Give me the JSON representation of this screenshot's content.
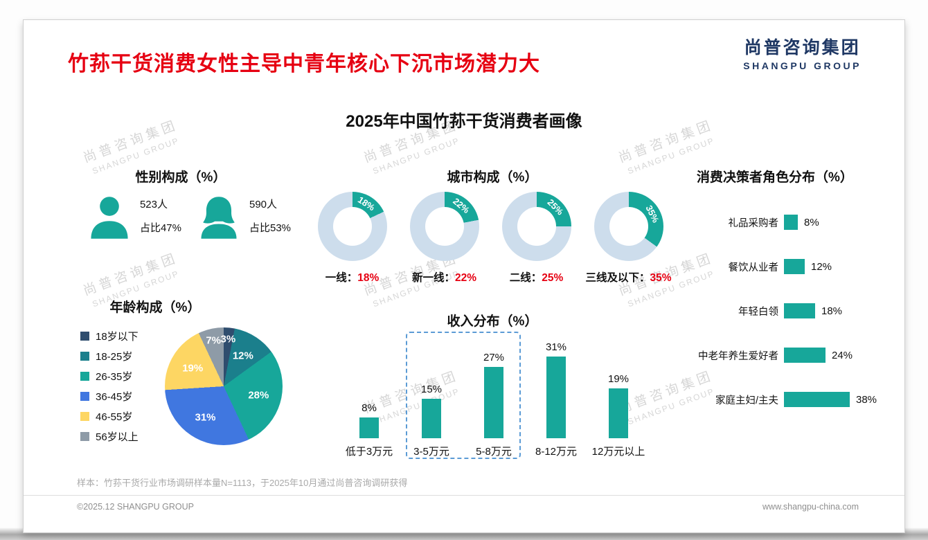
{
  "page": {
    "headline": "竹荪干货消费女性主导中青年核心下沉市场潜力大",
    "chart_title": "2025年中国竹荪干货消费者画像",
    "note": "样本：竹荪干货行业市场调研样本量N=1113，于2025年10月通过尚普咨询调研获得",
    "footer_left": "©2025.12 SHANGPU GROUP",
    "footer_right": "www.shangpu-china.com"
  },
  "logo": {
    "cn": "尚普咨询集团",
    "en": "SHANGPU GROUP"
  },
  "watermark": {
    "cn": "尚普咨询集团",
    "en": "SHANGPU GROUP"
  },
  "colors": {
    "teal": "#17a79a",
    "donut_rest": "#cdddec",
    "headline_red": "#e60012",
    "logo_navy": "#1f3864",
    "dashed_box_blue": "#5b9bd5",
    "watermark_gray": "#d6d6d6"
  },
  "chart_data": [
    {
      "id": "gender",
      "type": "pictogram",
      "title": "性别构成（%）",
      "items": [
        {
          "gender": "男",
          "count": "523人",
          "share": "占比47%",
          "share_value": 47
        },
        {
          "gender": "女",
          "count": "590人",
          "share": "占比53%",
          "share_value": 53
        }
      ]
    },
    {
      "id": "city",
      "type": "donut",
      "title": "城市构成（%）",
      "items": [
        {
          "label": "一线：",
          "pct_label": "18%",
          "value": 18
        },
        {
          "label": "新一线：",
          "pct_label": "22%",
          "value": 22
        },
        {
          "label": "二线：",
          "pct_label": "25%",
          "value": 25
        },
        {
          "label": "三线及以下：",
          "pct_label": "35%",
          "value": 35
        }
      ]
    },
    {
      "id": "age",
      "type": "pie",
      "title": "年龄构成（%）",
      "segments": [
        {
          "label": "18岁以下",
          "value": 3,
          "pct_label": "3%",
          "color": "#2f4d6e"
        },
        {
          "label": "18-25岁",
          "value": 12,
          "pct_label": "12%",
          "color": "#1b7f8c"
        },
        {
          "label": "26-35岁",
          "value": 28,
          "pct_label": "28%",
          "color": "#17a79a"
        },
        {
          "label": "36-45岁",
          "value": 31,
          "pct_label": "31%",
          "color": "#4077e0"
        },
        {
          "label": "46-55岁",
          "value": 19,
          "pct_label": "19%",
          "color": "#fdd663"
        },
        {
          "label": "56岁以上",
          "value": 7,
          "pct_label": "7%",
          "color": "#8e9ba7"
        }
      ]
    },
    {
      "id": "income",
      "type": "bar",
      "title": "收入分布（%）",
      "categories": [
        "低于3万元",
        "3-5万元",
        "5-8万元",
        "8-12万元",
        "12万元以上"
      ],
      "values": [
        8,
        15,
        27,
        31,
        19
      ],
      "value_labels": [
        "8%",
        "15%",
        "27%",
        "31%",
        "19%"
      ],
      "highlight_box": [
        "3-5万元",
        "5-8万元"
      ]
    },
    {
      "id": "roles",
      "type": "bar-horizontal",
      "title": "消费决策者角色分布（%）",
      "categories": [
        "礼品采购者",
        "餐饮从业者",
        "年轻白领",
        "中老年养生爱好者",
        "家庭主妇/主夫"
      ],
      "values": [
        8,
        12,
        18,
        24,
        38
      ],
      "value_labels": [
        "8%",
        "12%",
        "18%",
        "24%",
        "38%"
      ]
    }
  ]
}
